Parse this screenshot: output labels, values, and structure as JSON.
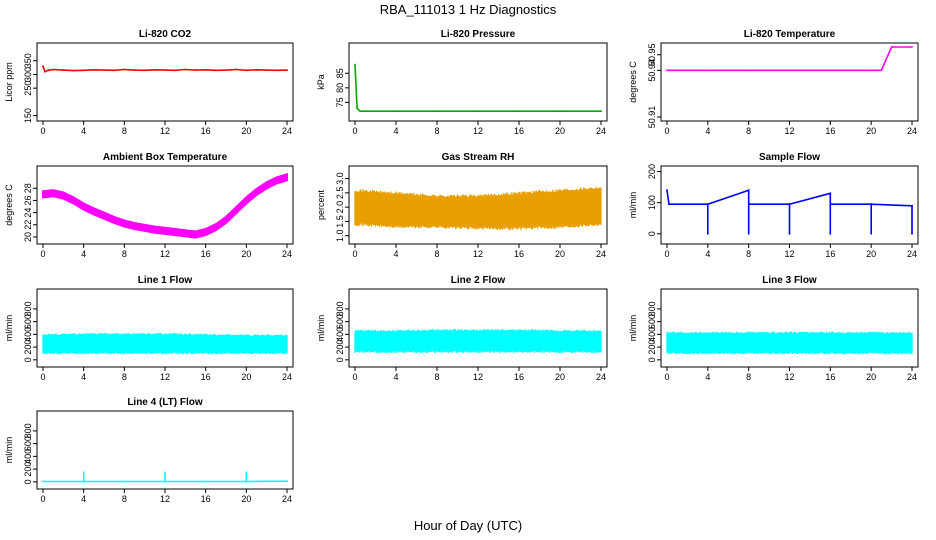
{
  "title": "RBA_111013  1 Hz Diagnostics",
  "xlabel": "Hour of Day (UTC)",
  "chart_data": [
    {
      "type": "line",
      "title": "Li-820 CO2",
      "ylabel": "Licor ppm",
      "color": "#ff0000",
      "xlim": [
        0,
        24
      ],
      "ylim": [
        145,
        400
      ],
      "yticks": [
        "150",
        "250",
        "300",
        "350"
      ],
      "ytick_values": [
        150,
        250,
        300,
        350
      ],
      "xticks": [
        "0",
        "4",
        "8",
        "12",
        "16",
        "20",
        "24"
      ],
      "series": [
        {
          "x": [
            0,
            0.2,
            0.5,
            1,
            2,
            3,
            4,
            5,
            6,
            7,
            8,
            9,
            10,
            11,
            12,
            13,
            14,
            15,
            16,
            17,
            18,
            19,
            20,
            21,
            22,
            23,
            24
          ],
          "y": [
            330,
            310,
            315,
            318,
            316,
            314,
            315,
            317,
            316,
            315,
            318,
            316,
            315,
            317,
            316,
            315,
            318,
            316,
            317,
            315,
            316,
            318,
            315,
            317,
            316,
            315,
            316
          ]
        }
      ]
    },
    {
      "type": "line",
      "title": "Li-820 Pressure",
      "ylabel": "kPa",
      "color": "#00aa00",
      "xlim": [
        0,
        24
      ],
      "ylim": [
        70,
        94
      ],
      "yticks": [
        "75",
        "80",
        "85"
      ],
      "ytick_values": [
        75,
        80,
        85
      ],
      "xticks": [
        "0",
        "4",
        "8",
        "12",
        "16",
        "20",
        "24"
      ],
      "series": [
        {
          "x": [
            0,
            0.2,
            0.5,
            4,
            8,
            12,
            16,
            20,
            24
          ],
          "y": [
            88,
            73,
            72,
            72,
            72,
            72,
            72,
            72,
            72
          ]
        }
      ]
    },
    {
      "type": "line",
      "title": "Li-820 Temperature",
      "ylabel": "degrees C",
      "color": "#ff00ff",
      "xlim": [
        0,
        24
      ],
      "ylim": [
        50.91,
        50.955
      ],
      "yticks": [
        "50.91",
        "50.94",
        "50.95"
      ],
      "ytick_values": [
        50.91,
        50.94,
        50.95
      ],
      "xticks": [
        "0",
        "4",
        "8",
        "12",
        "16",
        "20",
        "24"
      ],
      "series": [
        {
          "x": [
            0,
            2,
            4,
            8,
            12,
            16,
            20,
            21,
            22,
            24
          ],
          "y": [
            50.94,
            50.94,
            50.94,
            50.94,
            50.94,
            50.94,
            50.94,
            50.94,
            50.955,
            50.955
          ]
        }
      ]
    },
    {
      "type": "area",
      "title": "Ambient Box Temperature",
      "ylabel": "degrees C",
      "color": "#ff00ff",
      "xlim": [
        0,
        24
      ],
      "ylim": [
        19.5,
        31
      ],
      "yticks": [
        "20",
        "22",
        "24",
        "26",
        "28"
      ],
      "ytick_values": [
        20,
        22,
        24,
        26,
        28
      ],
      "xticks": [
        "0",
        "4",
        "8",
        "12",
        "16",
        "20",
        "24"
      ],
      "series": [
        {
          "x": [
            0,
            1,
            2,
            3,
            4,
            5,
            6,
            7,
            8,
            9,
            10,
            11,
            12,
            13,
            14,
            15,
            16,
            17,
            18,
            19,
            20,
            21,
            22,
            23,
            24
          ],
          "y": [
            27,
            27.2,
            26.8,
            26,
            25,
            24.2,
            23.5,
            22.8,
            22.2,
            21.8,
            21.5,
            21.2,
            21,
            20.8,
            20.6,
            20.4,
            20.8,
            21.6,
            22.8,
            24.4,
            26,
            27.4,
            28.5,
            29.3,
            29.8
          ],
          "band": 0.5
        }
      ]
    },
    {
      "type": "area",
      "title": "Gas Stream RH",
      "ylabel": "percent",
      "color": "#e8a000",
      "xlim": [
        0,
        24
      ],
      "ylim": [
        0.85,
        3.3
      ],
      "yticks": [
        "1.0",
        "1.5",
        "2.0",
        "2.5",
        "3.0"
      ],
      "ytick_values": [
        1.0,
        1.5,
        2.0,
        2.5,
        3.0
      ],
      "xticks": [
        "0",
        "4",
        "8",
        "12",
        "16",
        "20",
        "24"
      ],
      "series": [
        {
          "x": [
            0,
            4,
            8,
            12,
            16,
            20,
            24
          ],
          "lo": [
            1.4,
            1.3,
            1.3,
            1.25,
            1.25,
            1.3,
            1.4
          ],
          "hi": [
            2.6,
            2.5,
            2.4,
            2.4,
            2.5,
            2.6,
            2.7
          ]
        }
      ]
    },
    {
      "type": "line",
      "title": "Sample Flow",
      "ylabel": "ml/min",
      "color": "#0000ff",
      "xlim": [
        0,
        24
      ],
      "ylim": [
        -20,
        205
      ],
      "yticks": [
        "0",
        "100",
        "200"
      ],
      "ytick_values": [
        0,
        100,
        200
      ],
      "xticks": [
        "0",
        "4",
        "8",
        "12",
        "16",
        "20",
        "24"
      ],
      "series": [
        {
          "x": [
            0,
            0.2,
            4,
            4,
            4,
            8,
            8,
            8,
            12,
            12,
            12,
            16,
            16,
            16,
            20,
            20,
            20,
            24,
            24
          ],
          "y": [
            140,
            95,
            95,
            0,
            95,
            140,
            0,
            95,
            95,
            0,
            95,
            130,
            0,
            95,
            95,
            0,
            95,
            90,
            0
          ]
        }
      ]
    },
    {
      "type": "area",
      "title": "Line 1 Flow",
      "ylabel": "ml/min",
      "color": "#00ffff",
      "xlim": [
        0,
        24
      ],
      "ylim": [
        -50,
        1050
      ],
      "yticks": [
        "0",
        "200",
        "400",
        "600",
        "800"
      ],
      "ytick_values": [
        0,
        200,
        400,
        600,
        800
      ],
      "xticks": [
        "0",
        "4",
        "8",
        "12",
        "16",
        "20",
        "24"
      ],
      "series": [
        {
          "x": [
            0,
            4,
            8,
            12,
            16,
            20,
            24
          ],
          "lo": [
            100,
            100,
            100,
            100,
            100,
            100,
            100
          ],
          "hi": [
            400,
            410,
            410,
            410,
            400,
            390,
            390
          ]
        }
      ]
    },
    {
      "type": "area",
      "title": "Line 2 Flow",
      "ylabel": "ml/min",
      "color": "#00ffff",
      "xlim": [
        0,
        24
      ],
      "ylim": [
        -50,
        1050
      ],
      "yticks": [
        "0",
        "200",
        "400",
        "600",
        "800"
      ],
      "ytick_values": [
        0,
        200,
        400,
        600,
        800
      ],
      "xticks": [
        "0",
        "4",
        "8",
        "12",
        "16",
        "20",
        "24"
      ],
      "series": [
        {
          "x": [
            0,
            4,
            8,
            12,
            16,
            20,
            24
          ],
          "lo": [
            120,
            120,
            120,
            120,
            120,
            120,
            120
          ],
          "hi": [
            460,
            460,
            470,
            470,
            470,
            460,
            460
          ]
        }
      ]
    },
    {
      "type": "area",
      "title": "Line 3 Flow",
      "ylabel": "ml/min",
      "color": "#00ffff",
      "xlim": [
        0,
        24
      ],
      "ylim": [
        -50,
        1050
      ],
      "yticks": [
        "0",
        "200",
        "400",
        "600",
        "800"
      ],
      "ytick_values": [
        0,
        200,
        400,
        600,
        800
      ],
      "xticks": [
        "0",
        "4",
        "8",
        "12",
        "16",
        "20",
        "24"
      ],
      "series": [
        {
          "x": [
            0,
            4,
            8,
            12,
            16,
            20,
            24
          ],
          "lo": [
            100,
            100,
            100,
            100,
            100,
            100,
            100
          ],
          "hi": [
            430,
            430,
            430,
            430,
            430,
            430,
            430
          ]
        }
      ]
    },
    {
      "type": "line",
      "title": "Line 4 (LT) Flow",
      "ylabel": "ml/min",
      "color": "#00ffff",
      "xlim": [
        0,
        24
      ],
      "ylim": [
        -50,
        1050
      ],
      "yticks": [
        "0",
        "200",
        "400",
        "600",
        "800"
      ],
      "ytick_values": [
        0,
        200,
        400,
        600,
        800
      ],
      "xticks": [
        "0",
        "4",
        "8",
        "12",
        "16",
        "20",
        "24"
      ],
      "series": [
        {
          "x": [
            0,
            4,
            4,
            4,
            8,
            12,
            12,
            12,
            16,
            20,
            20,
            20,
            24
          ],
          "y": [
            5,
            5,
            150,
            5,
            5,
            5,
            150,
            5,
            5,
            5,
            150,
            5,
            10
          ]
        }
      ]
    }
  ]
}
